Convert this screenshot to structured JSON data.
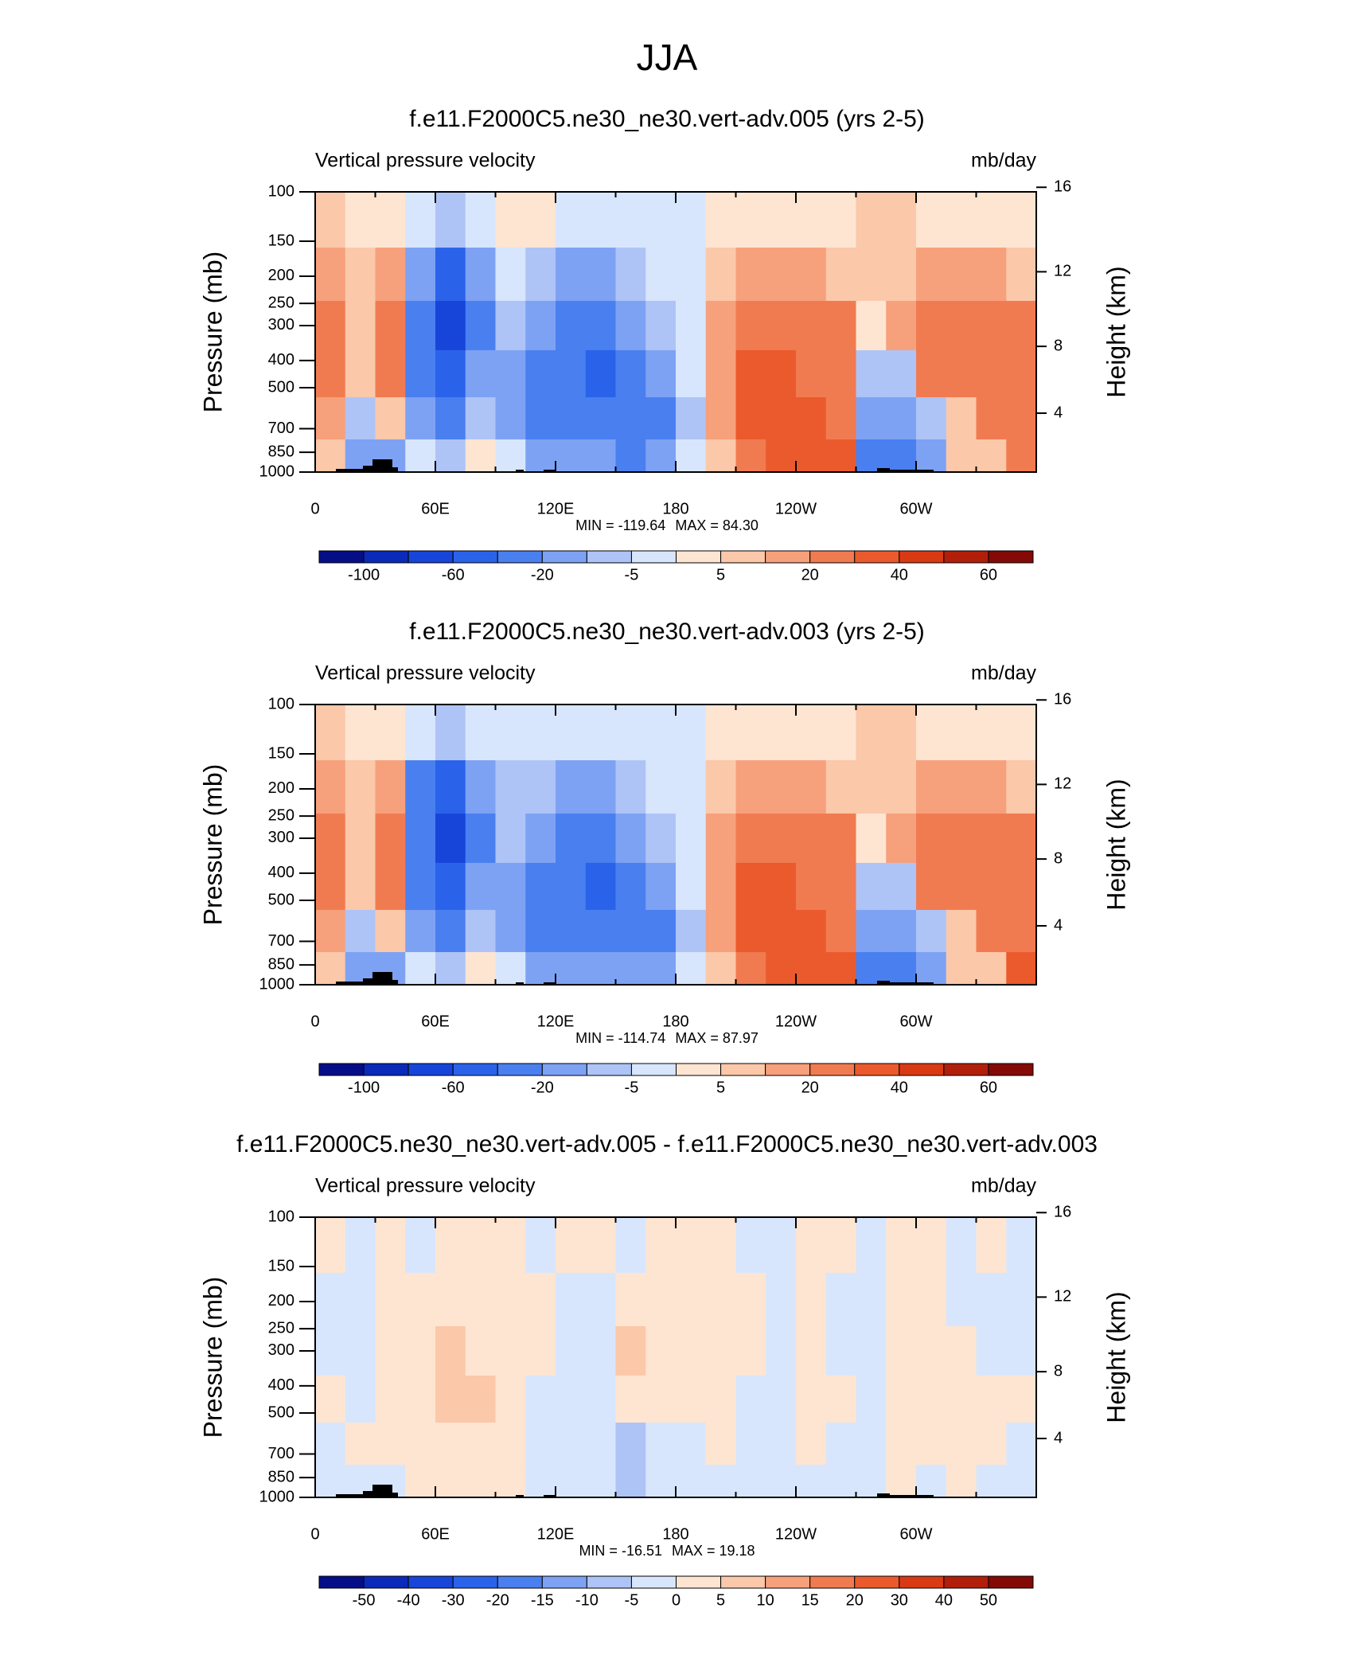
{
  "title": "JJA",
  "chart_data": [
    {
      "type": "heatmap",
      "title": "f.e11.F2000C5.ne30_ne30.vert-adv.005 (yrs 2-5)",
      "left_label": "Vertical pressure velocity",
      "right_label": "mb/day",
      "ylabel": "Pressure (mb)",
      "y2label": "Height (km)",
      "x": [
        7.5,
        22.5,
        37.5,
        52.5,
        67.5,
        82.5,
        97.5,
        112.5,
        127.5,
        142.5,
        157.5,
        172.5,
        187.5,
        202.5,
        217.5,
        232.5,
        247.5,
        262.5,
        277.5,
        292.5,
        307.5,
        322.5,
        337.5,
        352.5
      ],
      "y": [
        125,
        200,
        300,
        450,
        650,
        900
      ],
      "z": [
        [
          5,
          3,
          3,
          -5,
          -10,
          -5,
          3,
          2,
          -3,
          -5,
          -3,
          -2,
          -2,
          3,
          3,
          3,
          3,
          3,
          5,
          5,
          3,
          3,
          3,
          3
        ],
        [
          15,
          10,
          15,
          -20,
          -50,
          -20,
          -5,
          -10,
          -15,
          -20,
          -10,
          -3,
          -2,
          8,
          15,
          15,
          15,
          10,
          10,
          10,
          15,
          15,
          15,
          10
        ],
        [
          20,
          10,
          20,
          -40,
          -70,
          -25,
          -10,
          -20,
          -30,
          -40,
          -20,
          -8,
          -3,
          15,
          25,
          25,
          20,
          20,
          0,
          15,
          20,
          25,
          25,
          25
        ],
        [
          25,
          5,
          20,
          -30,
          -50,
          -20,
          -20,
          -35,
          -40,
          -50,
          -25,
          -15,
          -5,
          15,
          30,
          30,
          25,
          25,
          -10,
          -10,
          25,
          25,
          25,
          25
        ],
        [
          15,
          -10,
          5,
          -20,
          -25,
          -10,
          -15,
          -30,
          -30,
          -35,
          -30,
          -25,
          -8,
          15,
          30,
          30,
          30,
          25,
          -20,
          -20,
          -10,
          10,
          20,
          25
        ],
        [
          5,
          -20,
          -20,
          -5,
          -10,
          2,
          -5,
          -15,
          -20,
          -20,
          -25,
          -20,
          -5,
          10,
          25,
          30,
          30,
          30,
          -40,
          -30,
          -15,
          5,
          10,
          25
        ]
      ],
      "xlim": [
        0,
        360
      ],
      "xticks": [
        0,
        {
          "value": 60,
          "label": "60E"
        },
        {
          "value": 120,
          "label": "120E"
        },
        180,
        {
          "value": 240,
          "label": "120W"
        },
        {
          "value": 300,
          "label": "60W"
        }
      ],
      "xminorticks": [
        30,
        90,
        150,
        210,
        270,
        330
      ],
      "ylim": [
        1000,
        100
      ],
      "log_y": true,
      "yticks": [
        100,
        150,
        200,
        250,
        300,
        400,
        500,
        700,
        850,
        1000
      ],
      "y2ticks": [
        4,
        8,
        12,
        16
      ],
      "min": {
        "value": -119.64,
        "label": "MIN = -119.64"
      },
      "max": {
        "value": 84.3,
        "label": "MAX =  84.30"
      },
      "colorbar": {
        "ticks": [
          -100,
          -60,
          -20,
          -5,
          5,
          20,
          40,
          60
        ],
        "colors": [
          "#050e87",
          "#0a2bb9",
          "#1745da",
          "#2a63ea",
          "#4a7ff0",
          "#7ea2f3",
          "#aec4f6",
          "#d7e6fc",
          "#fde5d2",
          "#fbc8aa",
          "#f7a07c",
          "#f17b51",
          "#eb5a2c",
          "#d93a14",
          "#b11f0b",
          "#830a06"
        ]
      }
    },
    {
      "type": "heatmap",
      "title": "f.e11.F2000C5.ne30_ne30.vert-adv.003 (yrs 2-5)",
      "left_label": "Vertical pressure velocity",
      "right_label": "mb/day",
      "ylabel": "Pressure (mb)",
      "y2label": "Height (km)",
      "x": [
        7.5,
        22.5,
        37.5,
        52.5,
        67.5,
        82.5,
        97.5,
        112.5,
        127.5,
        142.5,
        157.5,
        172.5,
        187.5,
        202.5,
        217.5,
        232.5,
        247.5,
        262.5,
        277.5,
        292.5,
        307.5,
        322.5,
        337.5,
        352.5
      ],
      "y": [
        125,
        200,
        300,
        450,
        650,
        900
      ],
      "z": [
        [
          5,
          3,
          3,
          -5,
          -10,
          -5,
          -3,
          -3,
          -3,
          -5,
          -3,
          -2,
          -2,
          3,
          3,
          3,
          3,
          3,
          5,
          5,
          3,
          3,
          3,
          3
        ],
        [
          15,
          10,
          15,
          -25,
          -55,
          -20,
          -8,
          -10,
          -15,
          -20,
          -10,
          -3,
          -2,
          8,
          15,
          15,
          15,
          10,
          10,
          10,
          15,
          15,
          15,
          10
        ],
        [
          20,
          8,
          20,
          -40,
          -75,
          -25,
          -10,
          -20,
          -30,
          -40,
          -20,
          -8,
          -3,
          15,
          25,
          25,
          20,
          20,
          0,
          15,
          20,
          25,
          25,
          25
        ],
        [
          25,
          5,
          20,
          -30,
          -55,
          -20,
          -20,
          -30,
          -40,
          -50,
          -25,
          -15,
          -5,
          15,
          30,
          30,
          25,
          25,
          -10,
          -10,
          25,
          25,
          25,
          25
        ],
        [
          15,
          -10,
          5,
          -20,
          -25,
          -10,
          -15,
          -30,
          -30,
          -35,
          -30,
          -25,
          -8,
          15,
          30,
          30,
          30,
          25,
          -20,
          -20,
          -10,
          10,
          20,
          25
        ],
        [
          5,
          -20,
          -20,
          -5,
          -8,
          2,
          -5,
          -15,
          -20,
          -20,
          -20,
          -20,
          -5,
          10,
          25,
          30,
          30,
          30,
          -40,
          -30,
          -15,
          5,
          10,
          30
        ]
      ],
      "xlim": [
        0,
        360
      ],
      "xticks": [
        0,
        {
          "value": 60,
          "label": "60E"
        },
        {
          "value": 120,
          "label": "120E"
        },
        180,
        {
          "value": 240,
          "label": "120W"
        },
        {
          "value": 300,
          "label": "60W"
        }
      ],
      "xminorticks": [
        30,
        90,
        150,
        210,
        270,
        330
      ],
      "ylim": [
        1000,
        100
      ],
      "log_y": true,
      "yticks": [
        100,
        150,
        200,
        250,
        300,
        400,
        500,
        700,
        850,
        1000
      ],
      "y2ticks": [
        4,
        8,
        12,
        16
      ],
      "min": {
        "value": -114.74,
        "label": "MIN = -114.74"
      },
      "max": {
        "value": 87.97,
        "label": "MAX =  87.97"
      },
      "colorbar": {
        "ticks": [
          -100,
          -60,
          -20,
          -5,
          5,
          20,
          40,
          60
        ],
        "colors": [
          "#050e87",
          "#0a2bb9",
          "#1745da",
          "#2a63ea",
          "#4a7ff0",
          "#7ea2f3",
          "#aec4f6",
          "#d7e6fc",
          "#fde5d2",
          "#fbc8aa",
          "#f7a07c",
          "#f17b51",
          "#eb5a2c",
          "#d93a14",
          "#b11f0b",
          "#830a06"
        ]
      }
    },
    {
      "type": "heatmap",
      "title": "f.e11.F2000C5.ne30_ne30.vert-adv.005 - f.e11.F2000C5.ne30_ne30.vert-adv.003",
      "left_label": "Vertical pressure velocity",
      "right_label": "mb/day",
      "ylabel": "Pressure (mb)",
      "y2label": "Height (km)",
      "x": [
        7.5,
        22.5,
        37.5,
        52.5,
        67.5,
        82.5,
        97.5,
        112.5,
        127.5,
        142.5,
        157.5,
        172.5,
        187.5,
        202.5,
        217.5,
        232.5,
        247.5,
        262.5,
        277.5,
        292.5,
        307.5,
        322.5,
        337.5,
        352.5
      ],
      "y": [
        125,
        200,
        300,
        450,
        650,
        900
      ],
      "z": [
        [
          1,
          -1,
          1,
          -1,
          1,
          2,
          1,
          -1,
          1,
          1,
          -1,
          1,
          1,
          1,
          -1,
          -1,
          1,
          1,
          -1,
          1,
          1,
          -1,
          1,
          -1
        ],
        [
          -1,
          -2,
          1,
          1,
          3,
          4,
          2,
          1,
          -1,
          -2,
          2,
          1,
          1,
          1,
          1,
          -1,
          1,
          -1,
          -1,
          1,
          1,
          -1,
          -1,
          -1
        ],
        [
          -1,
          -4,
          1,
          3,
          7,
          4,
          2,
          1,
          -2,
          -3,
          5,
          1,
          1,
          1,
          1,
          -1,
          1,
          -1,
          -3,
          1,
          1,
          2,
          -1,
          -1
        ],
        [
          1,
          -2,
          2,
          2,
          5,
          5,
          2,
          -1,
          -1,
          -4,
          3,
          1,
          1,
          1,
          -1,
          -1,
          1,
          1,
          -4,
          1,
          1,
          2,
          1,
          1
        ],
        [
          -1,
          1,
          2,
          1,
          4,
          3,
          1,
          -2,
          -2,
          -3,
          -6,
          -1,
          -1,
          1,
          -1,
          -1,
          1,
          -1,
          -4,
          1,
          1,
          1,
          1,
          -1
        ],
        [
          -1,
          -1,
          -2,
          1,
          2,
          1,
          1,
          -1,
          -3,
          -1,
          -8,
          -2,
          -1,
          -1,
          -1,
          -1,
          -1,
          -1,
          -1,
          1,
          -1,
          1,
          -1,
          -1
        ]
      ],
      "xlim": [
        0,
        360
      ],
      "xticks": [
        0,
        {
          "value": 60,
          "label": "60E"
        },
        {
          "value": 120,
          "label": "120E"
        },
        180,
        {
          "value": 240,
          "label": "120W"
        },
        {
          "value": 300,
          "label": "60W"
        }
      ],
      "xminorticks": [
        30,
        90,
        150,
        210,
        270,
        330
      ],
      "ylim": [
        1000,
        100
      ],
      "log_y": true,
      "yticks": [
        100,
        150,
        200,
        250,
        300,
        400,
        500,
        700,
        850,
        1000
      ],
      "y2ticks": [
        4,
        8,
        12,
        16
      ],
      "min": {
        "value": -16.51,
        "label": "MIN = -16.51"
      },
      "max": {
        "value": 19.18,
        "label": "MAX =  19.18"
      },
      "colorbar": {
        "ticks": [
          -50,
          -40,
          -30,
          -20,
          -15,
          -10,
          -5,
          0,
          5,
          10,
          15,
          20,
          30,
          40,
          50
        ],
        "colors": [
          "#050e87",
          "#0a2bb9",
          "#1745da",
          "#2a63ea",
          "#4a7ff0",
          "#7ea2f3",
          "#aec4f6",
          "#d7e6fc",
          "#fde5d2",
          "#fbc8aa",
          "#f7a07c",
          "#f17b51",
          "#eb5a2c",
          "#d93a14",
          "#b11f0b",
          "#830a06"
        ]
      }
    }
  ]
}
